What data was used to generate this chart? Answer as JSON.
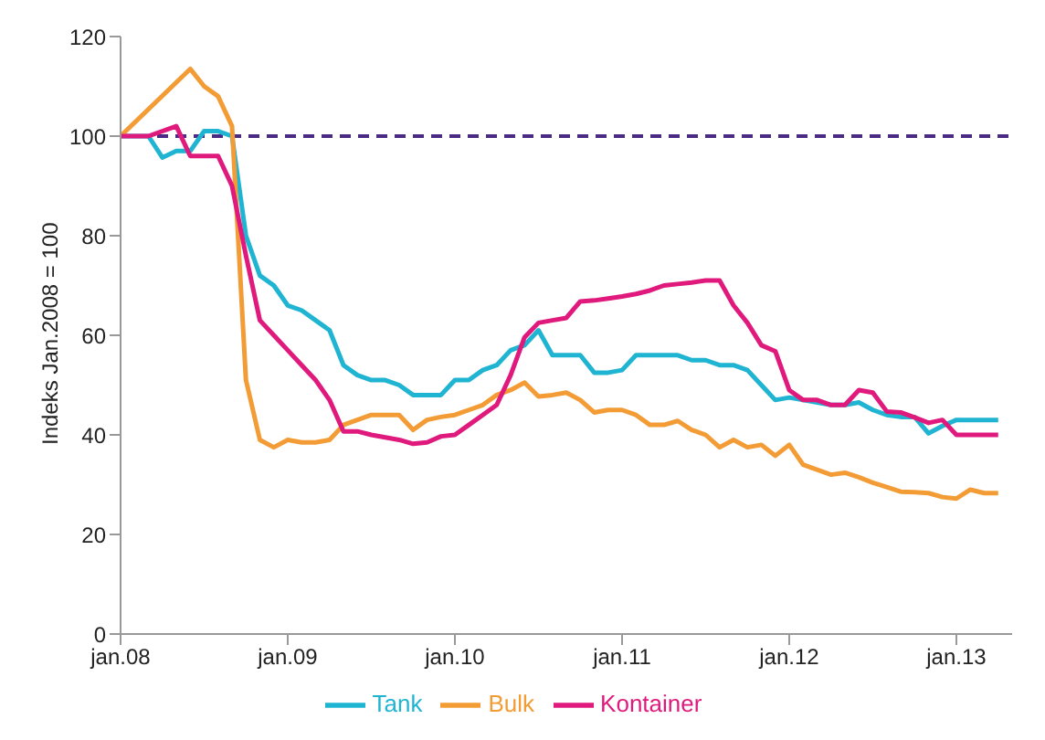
{
  "chart_data": {
    "type": "line",
    "ylabel": "Indeks Jan.2008 = 100",
    "xlim": [
      "2008-01",
      "2013-05"
    ],
    "xticks": [
      {
        "value": "2008-01",
        "label": "jan.08"
      },
      {
        "value": "2009-01",
        "label": "jan.09"
      },
      {
        "value": "2010-01",
        "label": "jan.10"
      },
      {
        "value": "2011-01",
        "label": "jan.11"
      },
      {
        "value": "2012-01",
        "label": "jan.12"
      },
      {
        "value": "2013-01",
        "label": "jan.13"
      }
    ],
    "ylim": [
      0,
      120
    ],
    "yticks": [
      0,
      20,
      40,
      60,
      80,
      100,
      120
    ],
    "grid": false,
    "legend": "bottom",
    "marker": "none",
    "line_style": "solid",
    "ref_lines": [
      {
        "axis": "y",
        "value": 100,
        "color": "#4b2a84",
        "line_style": "dashed"
      }
    ],
    "series": [
      {
        "name": "Tank",
        "color": "#1fb4d2",
        "x": [
          "2008-01",
          "2008-03",
          "2008-04",
          "2008-05",
          "2008-06",
          "2008-07",
          "2008-08",
          "2008-09",
          "2008-10",
          "2008-11",
          "2008-12",
          "2009-01",
          "2009-02",
          "2009-03",
          "2009-04",
          "2009-05",
          "2009-06",
          "2009-07",
          "2009-08",
          "2009-09",
          "2009-10",
          "2009-11",
          "2009-12",
          "2010-01",
          "2010-02",
          "2010-03",
          "2010-04",
          "2010-05",
          "2010-06",
          "2010-07",
          "2010-08",
          "2010-09",
          "2010-10",
          "2010-11",
          "2010-12",
          "2011-01",
          "2011-02",
          "2011-03",
          "2011-04",
          "2011-05",
          "2011-06",
          "2011-07",
          "2011-08",
          "2011-09",
          "2011-10",
          "2011-11",
          "2011-12",
          "2012-01",
          "2012-02",
          "2012-03",
          "2012-04",
          "2012-05",
          "2012-06",
          "2012-07",
          "2012-08",
          "2012-09",
          "2012-10",
          "2012-11",
          "2012-12",
          "2013-01",
          "2013-02",
          "2013-03",
          "2013-04"
        ],
        "values": [
          100,
          100,
          95.7,
          97,
          97,
          101,
          101,
          100,
          80,
          72,
          70,
          66,
          65,
          63,
          61,
          54,
          52,
          51,
          51,
          50,
          48,
          48,
          48,
          51,
          51,
          53,
          54,
          57,
          58,
          61,
          56,
          56,
          56,
          52.5,
          52.5,
          53,
          56,
          56,
          56,
          56,
          55,
          55,
          54,
          54,
          53,
          50,
          47,
          47.5,
          47,
          46.5,
          46,
          46,
          46.5,
          45,
          44,
          43.6,
          43.6,
          40.3,
          41.8,
          43,
          43,
          43,
          43
        ]
      },
      {
        "name": "Bulk",
        "color": "#f39c35",
        "x": [
          "2008-01",
          "2008-06",
          "2008-07",
          "2008-08",
          "2008-09",
          "2008-10",
          "2008-11",
          "2008-12",
          "2009-01",
          "2009-02",
          "2009-03",
          "2009-04",
          "2009-05",
          "2009-06",
          "2009-07",
          "2009-08",
          "2009-09",
          "2009-10",
          "2009-11",
          "2009-12",
          "2010-01",
          "2010-02",
          "2010-03",
          "2010-04",
          "2010-05",
          "2010-06",
          "2010-07",
          "2010-08",
          "2010-09",
          "2010-10",
          "2010-11",
          "2010-12",
          "2011-01",
          "2011-02",
          "2011-03",
          "2011-04",
          "2011-05",
          "2011-06",
          "2011-07",
          "2011-08",
          "2011-09",
          "2011-10",
          "2011-11",
          "2011-12",
          "2012-01",
          "2012-02",
          "2012-03",
          "2012-04",
          "2012-05",
          "2012-06",
          "2012-07",
          "2012-08",
          "2012-09",
          "2012-10",
          "2012-11",
          "2012-12",
          "2013-01",
          "2013-02",
          "2013-03",
          "2013-04"
        ],
        "values": [
          100,
          113.5,
          110,
          108,
          102,
          51,
          39,
          37.5,
          39,
          38.5,
          38.5,
          39,
          42,
          43,
          44,
          44,
          44,
          41,
          43,
          43.6,
          44,
          45,
          46,
          48,
          49,
          50.5,
          47.7,
          48,
          48.5,
          47,
          44.5,
          45,
          45,
          44,
          42,
          42,
          42.8,
          41,
          40,
          37.5,
          39,
          37.5,
          38,
          35.8,
          38,
          34,
          33,
          32,
          32.4,
          31.5,
          30.4,
          29.5,
          28.6,
          28.5,
          28.3,
          27.5,
          27.2,
          29,
          28.3,
          28.3
        ]
      },
      {
        "name": "Kontainer",
        "color": "#e0197d",
        "x": [
          "2008-01",
          "2008-03",
          "2008-05",
          "2008-06",
          "2008-07",
          "2008-08",
          "2008-09",
          "2008-10",
          "2008-11",
          "2008-12",
          "2009-01",
          "2009-02",
          "2009-03",
          "2009-04",
          "2009-05",
          "2009-06",
          "2009-07",
          "2009-08",
          "2009-09",
          "2009-10",
          "2009-11",
          "2009-12",
          "2010-01",
          "2010-02",
          "2010-03",
          "2010-04",
          "2010-05",
          "2010-06",
          "2010-07",
          "2010-08",
          "2010-09",
          "2010-10",
          "2010-11",
          "2010-12",
          "2011-01",
          "2011-02",
          "2011-03",
          "2011-04",
          "2011-05",
          "2011-06",
          "2011-07",
          "2011-08",
          "2011-09",
          "2011-10",
          "2011-11",
          "2011-12",
          "2012-01",
          "2012-02",
          "2012-03",
          "2012-04",
          "2012-05",
          "2012-06",
          "2012-07",
          "2012-08",
          "2012-09",
          "2012-10",
          "2012-11",
          "2012-12",
          "2013-01",
          "2013-02",
          "2013-03",
          "2013-04"
        ],
        "values": [
          100,
          100,
          102,
          96,
          96,
          96,
          90,
          76,
          63,
          60,
          57,
          54,
          51,
          47,
          40.7,
          40.7,
          40,
          39.5,
          39,
          38.2,
          38.5,
          39.7,
          40,
          42,
          44,
          46,
          52,
          59.6,
          62.5,
          63,
          63.5,
          66.8,
          67,
          67.4,
          67.8,
          68.3,
          69,
          70,
          70.3,
          70.6,
          71,
          71,
          66,
          62.5,
          58,
          56.8,
          49,
          47,
          47,
          46,
          46,
          49,
          48.5,
          44.7,
          44.5,
          43.5,
          42.4,
          43,
          40,
          40,
          40,
          40
        ]
      }
    ]
  }
}
